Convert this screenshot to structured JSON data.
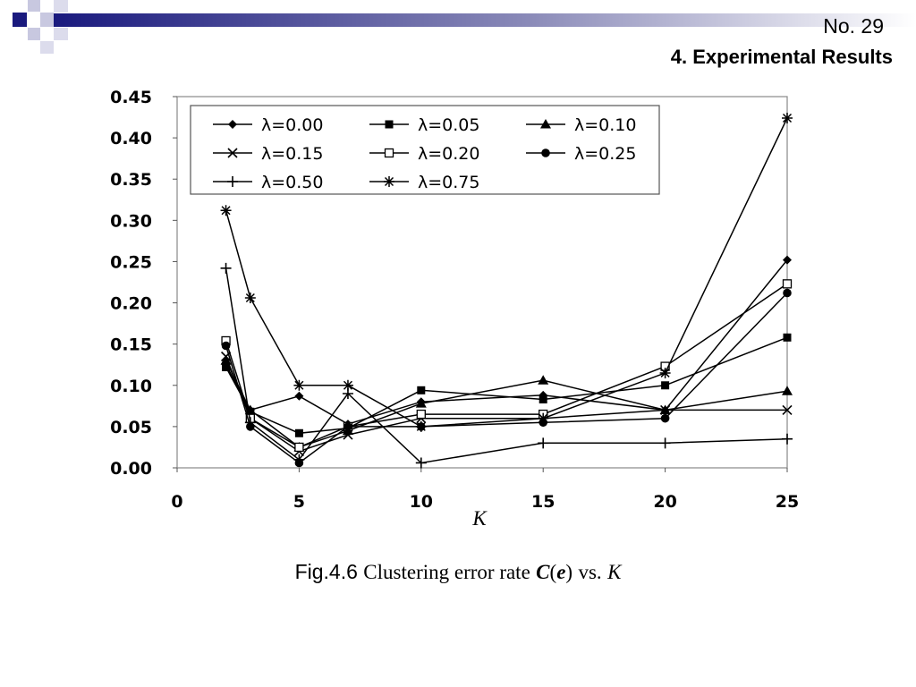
{
  "slide": {
    "number": "No. 29",
    "title": "4. Experimental Results",
    "accent_color": "#1a1a7e"
  },
  "caption": {
    "fig": "Fig.4.6",
    "text": "Clustering error rate",
    "symbol_c": "C",
    "symbol_open": "(",
    "symbol_e": "e",
    "symbol_close": ")",
    "vs": "vs.",
    "symbol_k": "K"
  },
  "chart_data": {
    "type": "line",
    "title": "",
    "xlabel": "K",
    "ylabel": "",
    "xlim": [
      0,
      25
    ],
    "ylim": [
      0,
      0.45
    ],
    "xticks": [
      0,
      5,
      10,
      15,
      20,
      25
    ],
    "yticks": [
      0.0,
      0.05,
      0.1,
      0.15,
      0.2,
      0.25,
      0.3,
      0.35,
      0.4,
      0.45
    ],
    "grid": false,
    "legend": "top-left",
    "series": [
      {
        "name": "λ=0.00",
        "marker": "diamond",
        "x": [
          2,
          3,
          5,
          7,
          10,
          15,
          20,
          25
        ],
        "values": [
          0.125,
          0.07,
          0.087,
          0.053,
          0.08,
          0.088,
          0.07,
          0.252
        ]
      },
      {
        "name": "λ=0.05",
        "marker": "square",
        "x": [
          2,
          3,
          5,
          7,
          10,
          15,
          20,
          25
        ],
        "values": [
          0.122,
          0.068,
          0.042,
          0.048,
          0.094,
          0.083,
          0.1,
          0.158
        ]
      },
      {
        "name": "λ=0.10",
        "marker": "triangle",
        "x": [
          2,
          3,
          5,
          7,
          10,
          15,
          20,
          25
        ],
        "values": [
          0.13,
          0.07,
          0.025,
          0.045,
          0.078,
          0.106,
          0.07,
          0.093
        ]
      },
      {
        "name": "λ=0.15",
        "marker": "x",
        "x": [
          2,
          3,
          5,
          7,
          10,
          15,
          20,
          25
        ],
        "values": [
          0.135,
          0.06,
          0.02,
          0.04,
          0.06,
          0.06,
          0.07,
          0.07
        ]
      },
      {
        "name": "λ=0.20",
        "marker": "open-square",
        "x": [
          2,
          3,
          5,
          7,
          10,
          15,
          20,
          25
        ],
        "values": [
          0.154,
          0.06,
          0.025,
          0.05,
          0.065,
          0.065,
          0.123,
          0.223
        ]
      },
      {
        "name": "λ=0.25",
        "marker": "circle",
        "x": [
          2,
          3,
          5,
          7,
          10,
          15,
          20,
          25
        ],
        "values": [
          0.148,
          0.05,
          0.006,
          0.05,
          0.05,
          0.055,
          0.06,
          0.212
        ]
      },
      {
        "name": "λ=0.50",
        "marker": "plus",
        "x": [
          2,
          3,
          5,
          7,
          10,
          15,
          20,
          25
        ],
        "values": [
          0.242,
          0.055,
          0.01,
          0.09,
          0.006,
          0.03,
          0.03,
          0.035
        ]
      },
      {
        "name": "λ=0.75",
        "marker": "asterisk",
        "x": [
          2,
          3,
          5,
          7,
          10,
          15,
          20,
          25
        ],
        "values": [
          0.312,
          0.206,
          0.1,
          0.1,
          0.05,
          0.06,
          0.115,
          0.424
        ]
      }
    ]
  }
}
